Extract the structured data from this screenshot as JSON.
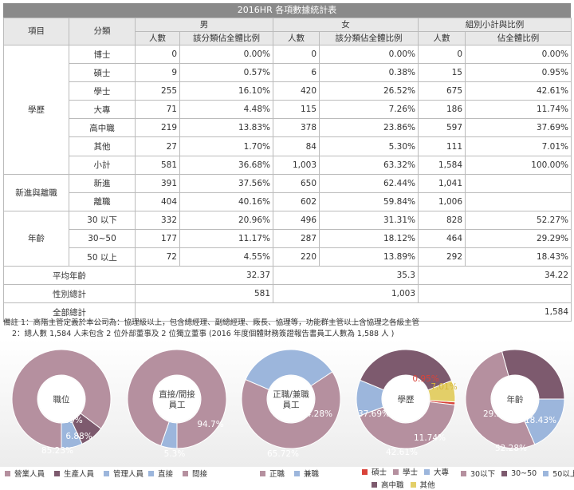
{
  "title": "2016HR 各項數據統計表",
  "header": {
    "col_item": "項目",
    "col_cat": "分類",
    "male": "男",
    "female": "女",
    "subtotal": "組別小計與比例",
    "count": "人數",
    "ratio": "該分類佔全體比例",
    "total_ratio": "佔全體比例"
  },
  "groups": {
    "education": "學歷",
    "turnover": "新進與離職",
    "age": "年齡"
  },
  "rows": [
    {
      "cat": "博士",
      "m": "0",
      "mr": "0.00%",
      "f": "0",
      "fr": "0.00%",
      "t": "0",
      "tr": "0.00%"
    },
    {
      "cat": "碩士",
      "m": "9",
      "mr": "0.57%",
      "f": "6",
      "fr": "0.38%",
      "t": "15",
      "tr": "0.95%"
    },
    {
      "cat": "學士",
      "m": "255",
      "mr": "16.10%",
      "f": "420",
      "fr": "26.52%",
      "t": "675",
      "tr": "42.61%"
    },
    {
      "cat": "大專",
      "m": "71",
      "mr": "4.48%",
      "f": "115",
      "fr": "7.26%",
      "t": "186",
      "tr": "11.74%"
    },
    {
      "cat": "高中職",
      "m": "219",
      "mr": "13.83%",
      "f": "378",
      "fr": "23.86%",
      "t": "597",
      "tr": "37.69%"
    },
    {
      "cat": "其他",
      "m": "27",
      "mr": "1.70%",
      "f": "84",
      "fr": "5.30%",
      "t": "111",
      "tr": "7.01%"
    },
    {
      "cat": "小計",
      "m": "581",
      "mr": "36.68%",
      "f": "1,003",
      "fr": "63.32%",
      "t": "1,584",
      "tr": "100.00%"
    },
    {
      "cat": "新進",
      "m": "391",
      "mr": "37.56%",
      "f": "650",
      "fr": "62.44%",
      "t": "1,041",
      "tr": ""
    },
    {
      "cat": "離職",
      "m": "404",
      "mr": "40.16%",
      "f": "602",
      "fr": "59.84%",
      "t": "1,006",
      "tr": ""
    },
    {
      "cat": "30 以下",
      "m": "332",
      "mr": "20.96%",
      "f": "496",
      "fr": "31.31%",
      "t": "828",
      "tr": "52.27%"
    },
    {
      "cat": "30~50",
      "m": "177",
      "mr": "11.17%",
      "f": "287",
      "fr": "18.12%",
      "t": "464",
      "tr": "29.29%"
    },
    {
      "cat": "50 以上",
      "m": "72",
      "mr": "4.55%",
      "f": "220",
      "fr": "13.89%",
      "t": "292",
      "tr": "18.43%"
    }
  ],
  "summary": {
    "avg_age_label": "平均年齡",
    "avg_m": "32.37",
    "avg_f": "35.3",
    "avg_t": "34.22",
    "gender_total_label": "性別總計",
    "gender_m": "581",
    "gender_f": "1,003",
    "overall_label": "全部總計",
    "overall": "1,584"
  },
  "notes": [
    "備註 1：高階主管定義於本公司為：協理級以上，包含總經理、副總經理、廠長、協理等，功能群主管以上含協理之各級主管",
    "2：總人數 1,584 人未包含 2 位外部董事及 2 位獨立董事 (2016 年度個體財務簽證報告書員工人數為 1,588 人 )"
  ],
  "colors": {
    "mauve": "#b5909f",
    "plum": "#7d5a6e",
    "blue": "#9cb6dc",
    "red": "#d9433a",
    "yellow": "#e3cf68"
  },
  "chart_data": [
    {
      "type": "pie",
      "center_label": "職位",
      "labels": [
        "營業人員",
        "生產人員",
        "管理人員"
      ],
      "values": [
        85.23,
        7.89,
        6.88
      ],
      "value_labels": [
        "85.23%",
        "7.89%",
        "6.88%"
      ]
    },
    {
      "type": "pie",
      "center_label": "直接/間接員工",
      "labels": [
        "直接",
        "間接"
      ],
      "values": [
        5.3,
        94.7
      ],
      "value_labels": [
        "5.3%",
        "94.7%"
      ]
    },
    {
      "type": "pie",
      "center_label": "正職/兼職員工",
      "labels": [
        "正職",
        "兼職"
      ],
      "values": [
        65.72,
        34.28
      ],
      "value_labels": [
        "65.72%",
        "34.28%"
      ]
    },
    {
      "type": "pie",
      "center_label": "學歷",
      "labels": [
        "碩士",
        "學士",
        "大專",
        "高中職",
        "其他"
      ],
      "values": [
        0.95,
        42.61,
        11.74,
        37.69,
        7.01
      ],
      "value_labels": [
        "0.95%",
        "42.61%",
        "11.74%",
        "37.69%",
        "7.01%"
      ]
    },
    {
      "type": "pie",
      "center_label": "年齡",
      "labels": [
        "30以下",
        "30~50",
        "50以上"
      ],
      "values": [
        52.28,
        29.29,
        18.43
      ],
      "value_labels": [
        "52.28%",
        "29.29%",
        "18.43%"
      ]
    }
  ]
}
